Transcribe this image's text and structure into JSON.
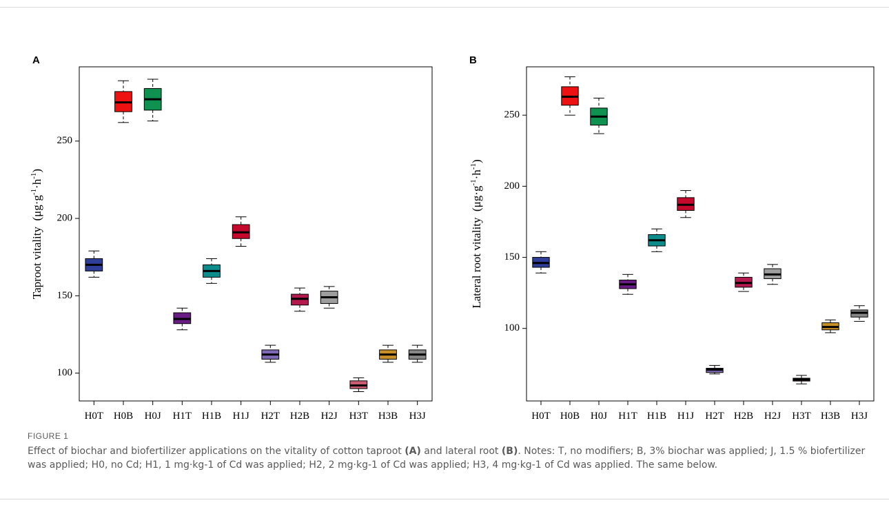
{
  "figure": {
    "label": "FIGURE 1",
    "caption": {
      "pre_a": "Effect of biochar and biofertilizer applications on the vitality of cotton taproot ",
      "ref_a": "(A)",
      "mid": " and lateral root ",
      "ref_b": "(B)",
      "post": ". Notes: T, no modifiers; B, 3% biochar was applied; J, 1.5 % biofertilizer was applied; H0, no Cd; H1, 1 mg·kg-1 of Cd was applied; H2, 2 mg·kg-1 of Cd was applied; H3, 4 mg·kg-1 of Cd was applied. The same below."
    }
  },
  "chart_data": [
    {
      "panel": "A",
      "type": "box",
      "ylabel_main": "Taproot vitality",
      "ylabel_unit_main": "μg·g",
      "ylabel_sup1": "-1",
      "ylabel_mid": "·h",
      "ylabel_sup2": "-1",
      "ylim": [
        82,
        298
      ],
      "yticks": [
        100,
        150,
        200,
        250
      ],
      "grid": false,
      "categories": [
        "H0T",
        "H0B",
        "H0J",
        "H1T",
        "H1B",
        "H1J",
        "H2T",
        "H2B",
        "H2J",
        "H3T",
        "H3B",
        "H3J"
      ],
      "colors": [
        "#2e3e99",
        "#ee1111",
        "#0f9150",
        "#6a1c85",
        "#0d8c8c",
        "#c4092c",
        "#7f6ab8",
        "#b51a4e",
        "#9e9e9e",
        "#cc5c72",
        "#c99028",
        "#878787"
      ],
      "boxes": [
        {
          "whisker_low": 162,
          "q1": 166,
          "median": 170,
          "q3": 174,
          "whisker_high": 179
        },
        {
          "whisker_low": 262,
          "q1": 269,
          "median": 275,
          "q3": 282,
          "whisker_high": 289
        },
        {
          "whisker_low": 263,
          "q1": 270,
          "median": 277,
          "q3": 284,
          "whisker_high": 290
        },
        {
          "whisker_low": 128,
          "q1": 132,
          "median": 135,
          "q3": 139,
          "whisker_high": 142
        },
        {
          "whisker_low": 158,
          "q1": 162,
          "median": 166,
          "q3": 170,
          "whisker_high": 174
        },
        {
          "whisker_low": 182,
          "q1": 187,
          "median": 191,
          "q3": 196,
          "whisker_high": 201
        },
        {
          "whisker_low": 107,
          "q1": 109,
          "median": 112,
          "q3": 115,
          "whisker_high": 118
        },
        {
          "whisker_low": 140,
          "q1": 144,
          "median": 148,
          "q3": 151,
          "whisker_high": 155
        },
        {
          "whisker_low": 142,
          "q1": 145,
          "median": 149,
          "q3": 153,
          "whisker_high": 156
        },
        {
          "whisker_low": 88,
          "q1": 90,
          "median": 92,
          "q3": 95,
          "whisker_high": 97
        },
        {
          "whisker_low": 107,
          "q1": 109,
          "median": 112,
          "q3": 115,
          "whisker_high": 118
        },
        {
          "whisker_low": 107,
          "q1": 109,
          "median": 112,
          "q3": 115,
          "whisker_high": 118
        }
      ]
    },
    {
      "panel": "B",
      "type": "box",
      "ylabel_main": "Lateral root vitality",
      "ylabel_unit_main": "μg·g",
      "ylabel_sup1": "-1",
      "ylabel_mid": "·h",
      "ylabel_sup2": "-1",
      "ylim": [
        49,
        284
      ],
      "yticks": [
        100,
        150,
        200,
        250
      ],
      "grid": false,
      "categories": [
        "H0T",
        "H0B",
        "H0J",
        "H1T",
        "H1B",
        "H1J",
        "H2T",
        "H2B",
        "H2J",
        "H3T",
        "H3B",
        "H3J"
      ],
      "colors": [
        "#2e3e99",
        "#ee1111",
        "#0f9150",
        "#6a1c85",
        "#0d8c8c",
        "#c4092c",
        "#7f6ab8",
        "#b51a4e",
        "#9e9e9e",
        "#cc5c72",
        "#c99028",
        "#878787"
      ],
      "boxes": [
        {
          "whisker_low": 139,
          "q1": 143,
          "median": 146,
          "q3": 150,
          "whisker_high": 154
        },
        {
          "whisker_low": 250,
          "q1": 257,
          "median": 263,
          "q3": 270,
          "whisker_high": 277
        },
        {
          "whisker_low": 237,
          "q1": 243,
          "median": 249,
          "q3": 255,
          "whisker_high": 262
        },
        {
          "whisker_low": 124,
          "q1": 128,
          "median": 131,
          "q3": 134,
          "whisker_high": 138
        },
        {
          "whisker_low": 154,
          "q1": 158,
          "median": 162,
          "q3": 166,
          "whisker_high": 170
        },
        {
          "whisker_low": 178,
          "q1": 183,
          "median": 187,
          "q3": 192,
          "whisker_high": 197
        },
        {
          "whisker_low": 68,
          "q1": 69,
          "median": 71,
          "q3": 72,
          "whisker_high": 74
        },
        {
          "whisker_low": 126,
          "q1": 129,
          "median": 132,
          "q3": 136,
          "whisker_high": 139
        },
        {
          "whisker_low": 131,
          "q1": 135,
          "median": 138,
          "q3": 142,
          "whisker_high": 145
        },
        {
          "whisker_low": 61,
          "q1": 63,
          "median": 64,
          "q3": 65,
          "whisker_high": 67
        },
        {
          "whisker_low": 97,
          "q1": 99,
          "median": 101,
          "q3": 104,
          "whisker_high": 106
        },
        {
          "whisker_low": 105,
          "q1": 108,
          "median": 111,
          "q3": 113,
          "whisker_high": 116
        }
      ]
    }
  ]
}
